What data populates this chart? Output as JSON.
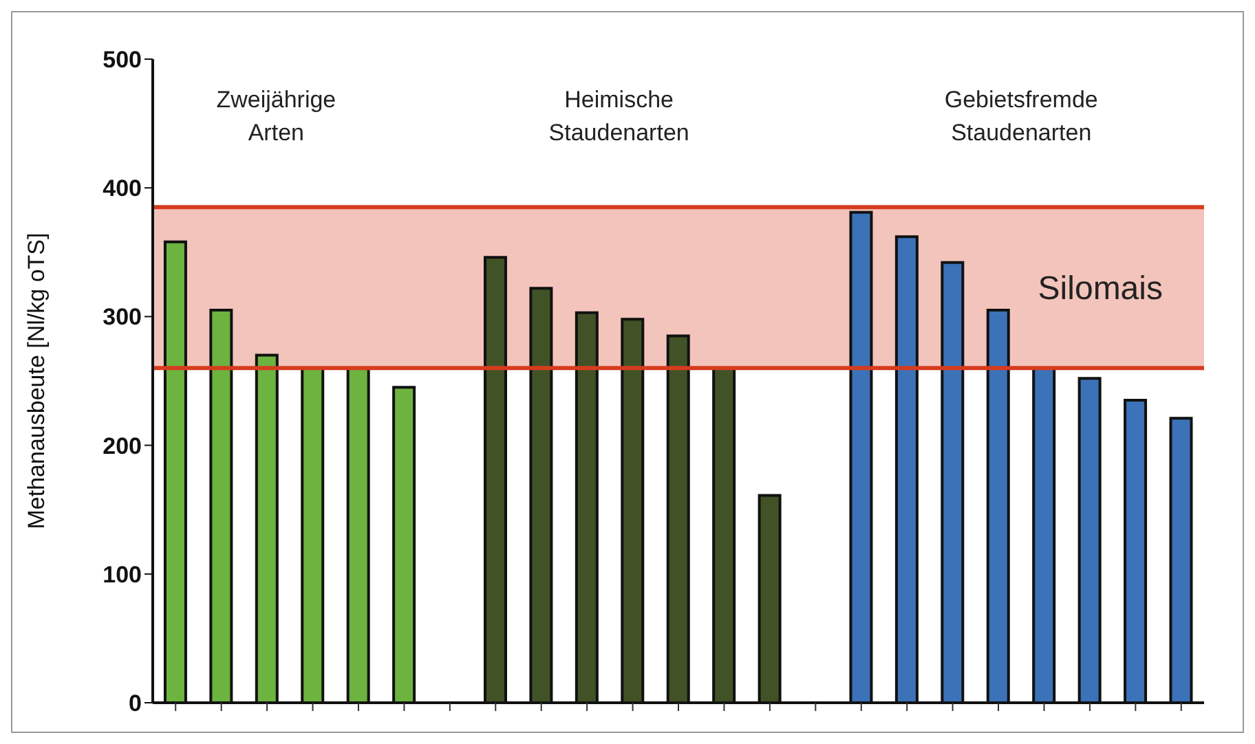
{
  "chart_data": {
    "type": "bar",
    "ylabel": "Methanausbeute  [Nl/kg oTS]",
    "categories": [
      null,
      null,
      null,
      null,
      null,
      null,
      null,
      null,
      null,
      null,
      null,
      null,
      null,
      null,
      null,
      null,
      null,
      null,
      null,
      null,
      null,
      null,
      null
    ],
    "values": [
      358,
      305,
      270,
      260,
      260,
      245,
      null,
      346,
      322,
      303,
      298,
      285,
      260,
      161,
      null,
      381,
      362,
      342,
      305,
      260,
      252,
      235,
      221
    ],
    "colors": [
      "#6db33f",
      "#6db33f",
      "#6db33f",
      "#6db33f",
      "#6db33f",
      "#6db33f",
      null,
      "#415226",
      "#415226",
      "#415226",
      "#415226",
      "#415226",
      "#415226",
      "#415226",
      null,
      "#3b72b8",
      "#3b72b8",
      "#3b72b8",
      "#3b72b8",
      "#3b72b8",
      "#3b72b8",
      "#3b72b8",
      "#3b72b8"
    ],
    "ylim": [
      0,
      500
    ],
    "yticks": [
      0,
      100,
      200,
      300,
      400,
      500
    ],
    "bands": [
      {
        "axis": "y",
        "from": 260,
        "to": 385,
        "label": "Silomais",
        "color": "#d63c1e"
      }
    ],
    "ref_lines": [
      {
        "axis": "y",
        "value": 260,
        "color": "#d63c1e"
      },
      {
        "axis": "y",
        "value": 385,
        "color": "#d63c1e"
      }
    ],
    "annotations": [
      "Zweijährige\nArten",
      "Heimische\nStaudenarten",
      "Gebietsfremde\nStaudenarten"
    ],
    "tick_labels": "y"
  }
}
